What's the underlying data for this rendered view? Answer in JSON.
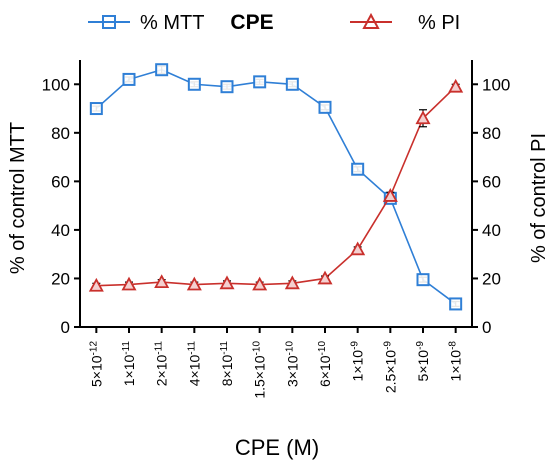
{
  "chart_data": {
    "type": "line",
    "title": "CPE",
    "xlabel": "CPE (M)",
    "ylabel_left": "% of control MTT",
    "ylabel_right": "% of control PI",
    "categories": [
      {
        "m": "5",
        "e": "-12"
      },
      {
        "m": "1",
        "e": "-11"
      },
      {
        "m": "2",
        "e": "-11"
      },
      {
        "m": "4",
        "e": "-11"
      },
      {
        "m": "8",
        "e": "-11"
      },
      {
        "m": "1.5",
        "e": "-10"
      },
      {
        "m": "3",
        "e": "-10"
      },
      {
        "m": "6",
        "e": "-10"
      },
      {
        "m": "1",
        "e": "-9"
      },
      {
        "m": "2.5",
        "e": "-9"
      },
      {
        "m": "5",
        "e": "-9"
      },
      {
        "m": "1",
        "e": "-8"
      }
    ],
    "ylim_left": [
      0,
      110
    ],
    "ylim_right": [
      0,
      110
    ],
    "yticks_left": [
      0,
      20,
      40,
      60,
      80,
      100
    ],
    "yticks_right": [
      0,
      20,
      40,
      60,
      80,
      100
    ],
    "legend_position": "top",
    "series": [
      {
        "name": "% MTT",
        "axis": "left",
        "marker": "square",
        "color": "#2f7fd6",
        "values": [
          90,
          102,
          106,
          100,
          99,
          101,
          100,
          90.5,
          65,
          53,
          19.5,
          9.5
        ],
        "errors": [
          1,
          1,
          1.5,
          1,
          1,
          1,
          1,
          1,
          1,
          1,
          1,
          1
        ]
      },
      {
        "name": "% PI",
        "axis": "right",
        "marker": "triangle",
        "color": "#c9302c",
        "values": [
          17,
          17.5,
          18.5,
          17.5,
          18,
          17.5,
          18,
          20,
          32,
          54,
          86,
          99
        ],
        "errors": [
          1,
          1,
          1,
          1,
          1,
          1,
          1,
          1,
          1,
          1.5,
          3.5,
          1
        ]
      }
    ]
  }
}
